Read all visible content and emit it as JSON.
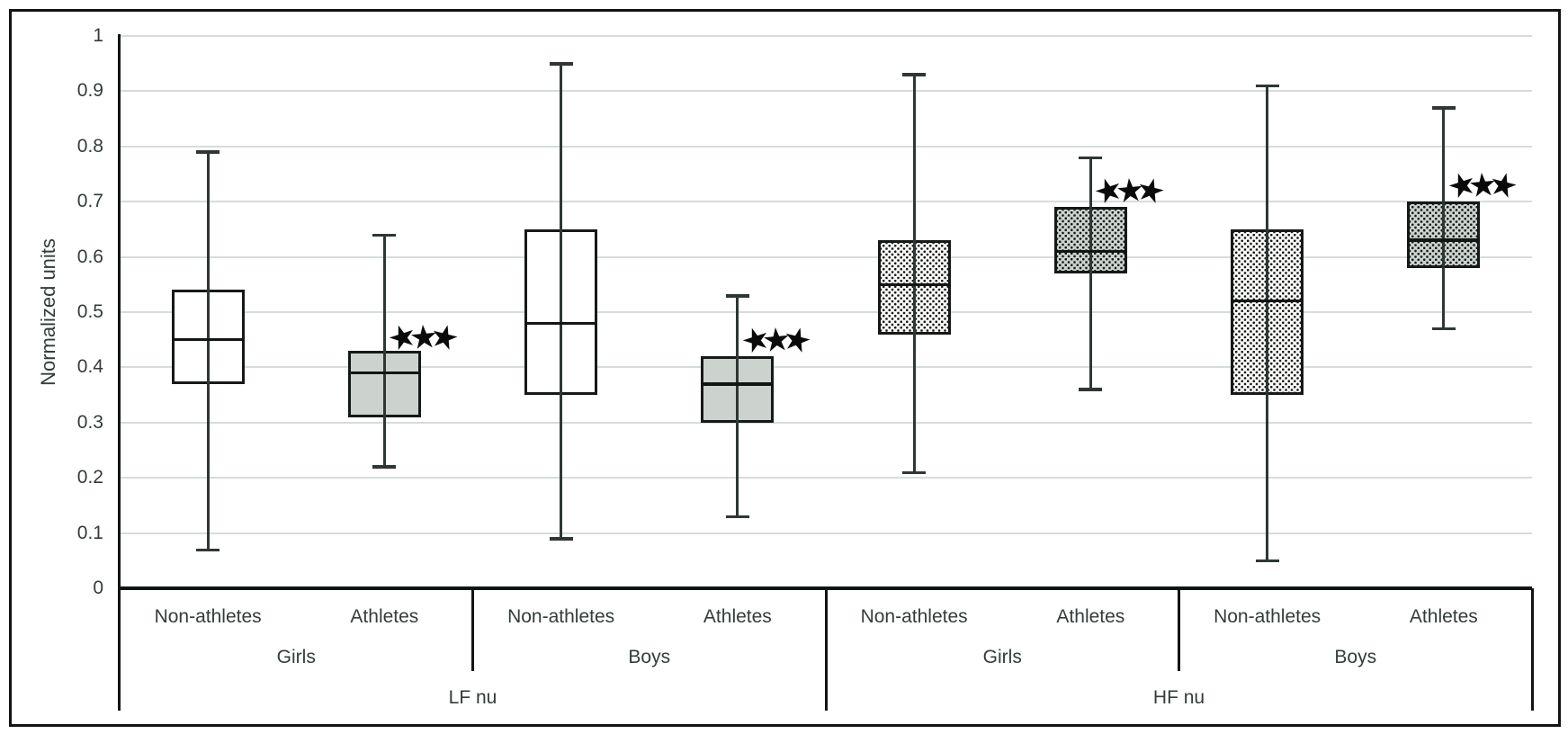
{
  "chart_data": {
    "type": "boxplot",
    "title": "",
    "ylabel": "Normalized units",
    "ylim": [
      0,
      1
    ],
    "ytick_step": 0.1,
    "ytick_labels": [
      "0",
      "0.1",
      "0.2",
      "0.3",
      "0.4",
      "0.5",
      "0.6",
      "0.7",
      "0.8",
      "0.9",
      "1"
    ],
    "grid": true,
    "x_hierarchy": {
      "level1": [
        "Non-athletes",
        "Athletes",
        "Non-athletes",
        "Athletes",
        "Non-athletes",
        "Athletes",
        "Non-athletes",
        "Athletes"
      ],
      "level2": [
        {
          "label": "Girls",
          "span": 2
        },
        {
          "label": "Boys",
          "span": 2
        },
        {
          "label": "Girls",
          "span": 2
        },
        {
          "label": "Boys",
          "span": 2
        }
      ],
      "level3": [
        {
          "label": "LF nu",
          "span": 4
        },
        {
          "label": "HF nu",
          "span": 4
        }
      ]
    },
    "boxes": [
      {
        "section": "LF nu",
        "sex": "Girls",
        "group": "Non-athletes",
        "style": "white",
        "whisker_low": 0.07,
        "q1": 0.37,
        "median": 0.45,
        "q3": 0.54,
        "whisker_high": 0.79,
        "significance": null,
        "significance_y": null
      },
      {
        "section": "LF nu",
        "sex": "Girls",
        "group": "Athletes",
        "style": "gray",
        "whisker_low": 0.22,
        "q1": 0.31,
        "median": 0.39,
        "q3": 0.43,
        "whisker_high": 0.64,
        "significance": "★★★",
        "significance_y": 0.455
      },
      {
        "section": "LF nu",
        "sex": "Boys",
        "group": "Non-athletes",
        "style": "white",
        "whisker_low": 0.09,
        "q1": 0.35,
        "median": 0.48,
        "q3": 0.65,
        "whisker_high": 0.95,
        "significance": null,
        "significance_y": null
      },
      {
        "section": "LF nu",
        "sex": "Boys",
        "group": "Athletes",
        "style": "gray",
        "whisker_low": 0.13,
        "q1": 0.3,
        "median": 0.37,
        "q3": 0.42,
        "whisker_high": 0.53,
        "significance": "★★★",
        "significance_y": 0.45
      },
      {
        "section": "HF nu",
        "sex": "Girls",
        "group": "Non-athletes",
        "style": "dotted-white",
        "whisker_low": 0.21,
        "q1": 0.46,
        "median": 0.55,
        "q3": 0.63,
        "whisker_high": 0.93,
        "significance": null,
        "significance_y": null
      },
      {
        "section": "HF nu",
        "sex": "Girls",
        "group": "Athletes",
        "style": "dotted-gray",
        "whisker_low": 0.36,
        "q1": 0.57,
        "median": 0.61,
        "q3": 0.69,
        "whisker_high": 0.78,
        "significance": "★★★",
        "significance_y": 0.72
      },
      {
        "section": "HF nu",
        "sex": "Boys",
        "group": "Non-athletes",
        "style": "dotted-white",
        "whisker_low": 0.05,
        "q1": 0.35,
        "median": 0.52,
        "q3": 0.65,
        "whisker_high": 0.91,
        "significance": null,
        "significance_y": null
      },
      {
        "section": "HF nu",
        "sex": "Boys",
        "group": "Athletes",
        "style": "dotted-gray",
        "whisker_low": 0.47,
        "q1": 0.58,
        "median": 0.63,
        "q3": 0.7,
        "whisker_high": 0.87,
        "significance": "★★★",
        "significance_y": 0.73
      }
    ],
    "colors": {
      "box_fill_white": "#ffffff",
      "box_fill_gray": "#ccd3cf",
      "dot_color": "#161616",
      "box_border": "#151918",
      "whisker": "#2f3735",
      "gridline": "#d6dcda",
      "axis": "#101413",
      "text": "#333c3b",
      "star": "#0a0a0a",
      "background": "#ffffff"
    }
  }
}
